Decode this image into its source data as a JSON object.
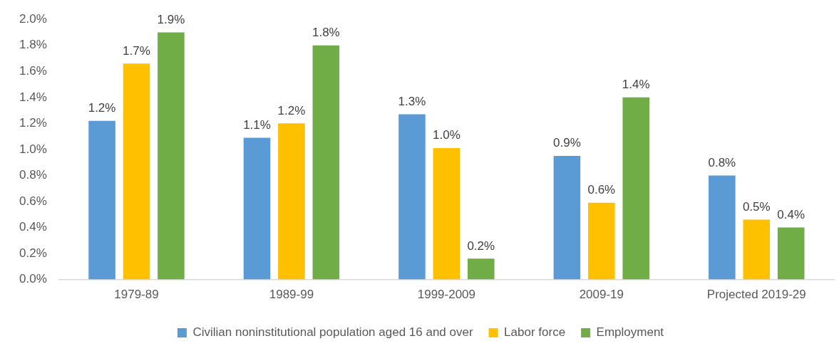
{
  "chart_data": {
    "type": "bar",
    "categories": [
      "1979-89",
      "1989-99",
      "1999-2009",
      "2009-19",
      "Projected 2019-29"
    ],
    "series": [
      {
        "name": "Civilian noninstitutional population aged 16 and over",
        "color": "#5b9bd5",
        "values": [
          1.22,
          1.09,
          1.27,
          0.95,
          0.8
        ],
        "value_labels": [
          "1.2%",
          "1.1%",
          "1.3%",
          "0.9%",
          "0.8%"
        ]
      },
      {
        "name": "Labor force",
        "color": "#ffc000",
        "values": [
          1.66,
          1.2,
          1.01,
          0.59,
          0.46
        ],
        "value_labels": [
          "1.7%",
          "1.2%",
          "1.0%",
          "0.6%",
          "0.5%"
        ]
      },
      {
        "name": "Employment",
        "color": "#70ad47",
        "values": [
          1.9,
          1.8,
          0.16,
          1.4,
          0.4
        ],
        "value_labels": [
          "1.9%",
          "1.8%",
          "0.2%",
          "1.4%",
          "0.4%"
        ]
      }
    ],
    "ylim": [
      0,
      2
    ],
    "yticks": [
      {
        "value": 0,
        "label": "0.0%"
      },
      {
        "value": 0.2,
        "label": "0.2%"
      },
      {
        "value": 0.4,
        "label": "0.4%"
      },
      {
        "value": 0.6,
        "label": "0.6%"
      },
      {
        "value": 0.8,
        "label": "0.8%"
      },
      {
        "value": 1,
        "label": "1.0%"
      },
      {
        "value": 1.2,
        "label": "1.2%"
      },
      {
        "value": 1.4,
        "label": "1.4%"
      },
      {
        "value": 1.6,
        "label": "1.6%"
      },
      {
        "value": 1.8,
        "label": "1.8%"
      },
      {
        "value": 2,
        "label": "2.0%"
      }
    ],
    "grid": false,
    "legend": "bottom"
  }
}
